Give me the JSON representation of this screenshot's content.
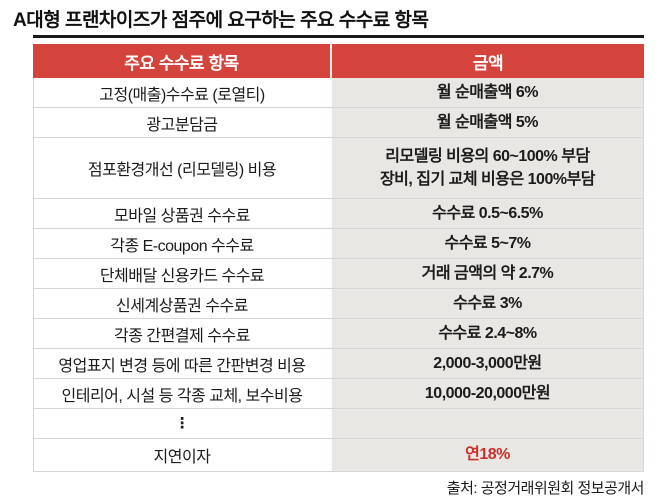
{
  "title": "A대형 프랜차이즈가 점주에 요구하는 주요 수수료 항목",
  "chart_data": {
    "type": "table",
    "title": "A대형 프랜차이즈가 점주에 요구하는 주요 수수료 항목",
    "columns": [
      "주요 수수료 항목",
      "금액"
    ],
    "rows": [
      {
        "item": "고정(매출)수수료 (로열티)",
        "amount": "월 순매출액 6%"
      },
      {
        "item": "광고분담금",
        "amount": "월 순매출액 5%"
      },
      {
        "item": "점포환경개선 (리모델링) 비용",
        "amount_lines": [
          "리모델링 비용의 60~100% 부담",
          "장비, 집기 교체 비용은 100%부담"
        ]
      },
      {
        "item": "모바일 상품권 수수료",
        "amount": "수수료 0.5~6.5%"
      },
      {
        "item": "각종 E-coupon 수수료",
        "amount": "수수료 5~7%"
      },
      {
        "item": "단체배달 신용카드 수수료",
        "amount": "거래 금액의 약 2.7%"
      },
      {
        "item": "신세계상품권 수수료",
        "amount": "수수료 3%"
      },
      {
        "item": "각종 간편결제 수수료",
        "amount": "수수료 2.4~8%"
      },
      {
        "item": "영업표지 변경 등에 따른 간판변경 비용",
        "amount": "2,000-3,000만원"
      },
      {
        "item": "인테리어, 시설 등 각종 교체, 보수비용",
        "amount": "10,000-20,000만원"
      },
      {
        "item": "⋮",
        "amount": ""
      },
      {
        "item": "지연이자",
        "amount": "연18%"
      }
    ],
    "source": "출처: 공정거래위원회 정보공개서"
  },
  "colors": {
    "header_bg": "#d4433c",
    "header_text": "#ffffff",
    "amount_cell_bg": "#e9e7e4",
    "late_fee_red": "#c9302c",
    "top_rule": "#1a1a1a",
    "row_border": "#d6d6d6",
    "title_text": "#111111"
  }
}
